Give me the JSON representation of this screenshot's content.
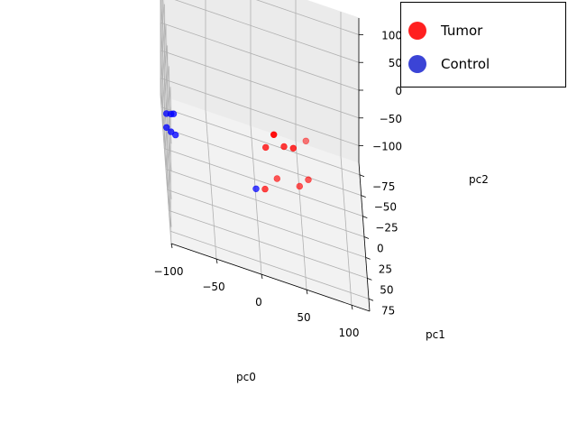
{
  "chart_data": {
    "type": "scatter",
    "projection": "3d",
    "title": "",
    "xlabel": "pc0",
    "ylabel": "pc1",
    "zlabel": "pc2",
    "xlim": [
      -100,
      120
    ],
    "ylim": [
      -90,
      90
    ],
    "zlim": [
      -130,
      130
    ],
    "xticks": [
      -100,
      -50,
      0,
      50,
      100
    ],
    "yticks": [
      -75,
      -50,
      -25,
      0,
      25,
      50,
      75
    ],
    "zticks": [
      -100,
      -50,
      0,
      50,
      100
    ],
    "grid": true,
    "legend_position": "top-right",
    "series": [
      {
        "name": "Tumor",
        "color": "#ff0000",
        "points": [
          {
            "x": 15,
            "y": 70,
            "z": 100
          },
          {
            "x": 30,
            "y": 15,
            "z": 5
          },
          {
            "x": 40,
            "y": 20,
            "z": 15
          },
          {
            "x": 10,
            "y": 10,
            "z": -15
          },
          {
            "x": 50,
            "y": -25,
            "z": -115
          },
          {
            "x": 10,
            "y": 0,
            "z": -105
          },
          {
            "x": 25,
            "y": -25,
            "z": -115
          },
          {
            "x": 60,
            "y": -30,
            "z": -105
          },
          {
            "x": 60,
            "y": -70,
            "z": -95
          }
        ]
      },
      {
        "name": "Control",
        "color": "#0000ff",
        "points": [
          {
            "x": -100,
            "y": 10,
            "z": -15
          },
          {
            "x": -95,
            "y": 10,
            "z": -13
          },
          {
            "x": -92,
            "y": 8,
            "z": -14
          },
          {
            "x": -100,
            "y": 10,
            "z": -40
          },
          {
            "x": -95,
            "y": 10,
            "z": -45
          },
          {
            "x": -90,
            "y": 10,
            "z": -48
          },
          {
            "x": 0,
            "y": 0,
            "z": -110
          }
        ]
      }
    ]
  },
  "legend": {
    "items": [
      {
        "label": "Tumor",
        "color": "#ff2020"
      },
      {
        "label": "Control",
        "color": "#3b44d6"
      }
    ]
  }
}
